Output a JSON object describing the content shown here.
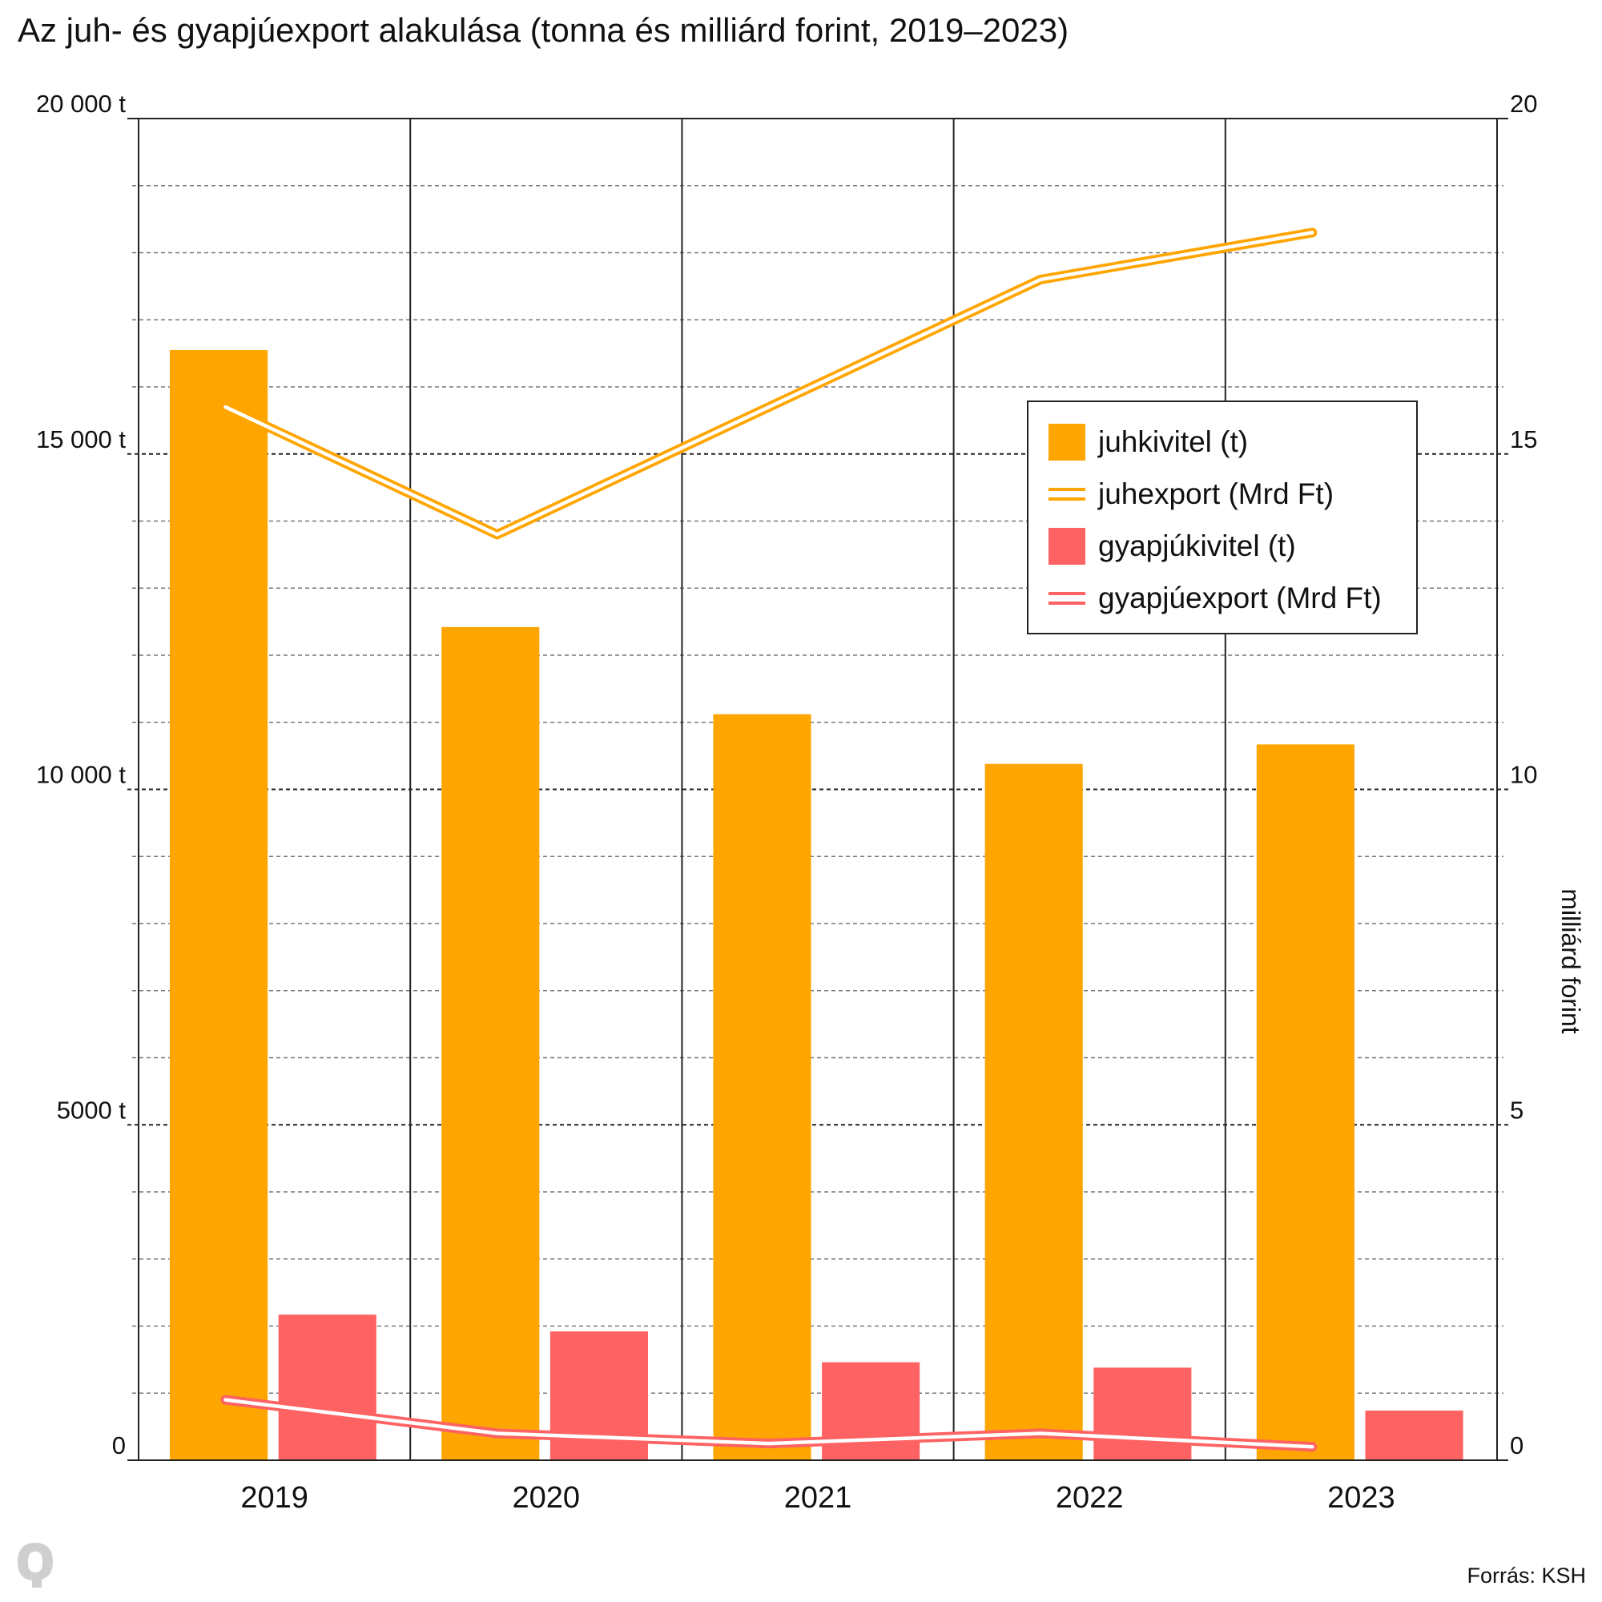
{
  "title": "Az juh- és gyapjúexport alakulása (tonna és milliárd forint, 2019–2023)",
  "source": "Forrás: KSH",
  "logo": "Q",
  "colors": {
    "juh": "#FFA500",
    "gyapju": "#FF6262",
    "line_inner": "#FFFFFF",
    "grid": "#555555"
  },
  "chart_data": {
    "type": "bar",
    "categories": [
      "2019",
      "2020",
      "2021",
      "2022",
      "2023"
    ],
    "series": [
      {
        "name": "juhkivitel (t)",
        "kind": "bar",
        "axis": "left",
        "color": "#FFA500",
        "values": [
          16550,
          12420,
          11120,
          10380,
          10670
        ]
      },
      {
        "name": "gyapjúkivitel (t)",
        "kind": "bar",
        "axis": "left",
        "color": "#FF6262",
        "values": [
          2170,
          1920,
          1460,
          1380,
          740
        ]
      },
      {
        "name": "juhexport (Mrd Ft)",
        "kind": "line",
        "axis": "right",
        "color": "#FFA500",
        "values": [
          15.7,
          13.8,
          null,
          17.6,
          18.3
        ]
      },
      {
        "name": "gyapjúexport (Mrd Ft)",
        "kind": "line",
        "axis": "right",
        "color": "#FF6262",
        "values": [
          0.9,
          0.4,
          0.25,
          0.4,
          0.2
        ]
      }
    ],
    "y_left": {
      "ylim": [
        0,
        20000
      ],
      "ticks": [
        0,
        5000,
        10000,
        15000,
        20000
      ],
      "tick_labels": [
        "0",
        "5000 t",
        "10 000 t",
        "15 000 t",
        "20 000 t"
      ]
    },
    "y_right": {
      "ylim": [
        0,
        20
      ],
      "ticks": [
        0,
        5,
        10,
        15,
        20
      ],
      "tick_labels": [
        "0",
        "5",
        "10",
        "15",
        "20"
      ],
      "ylabel": "milliárd forint"
    },
    "xlabel": "",
    "grid": true,
    "legend_position": "top-right"
  }
}
